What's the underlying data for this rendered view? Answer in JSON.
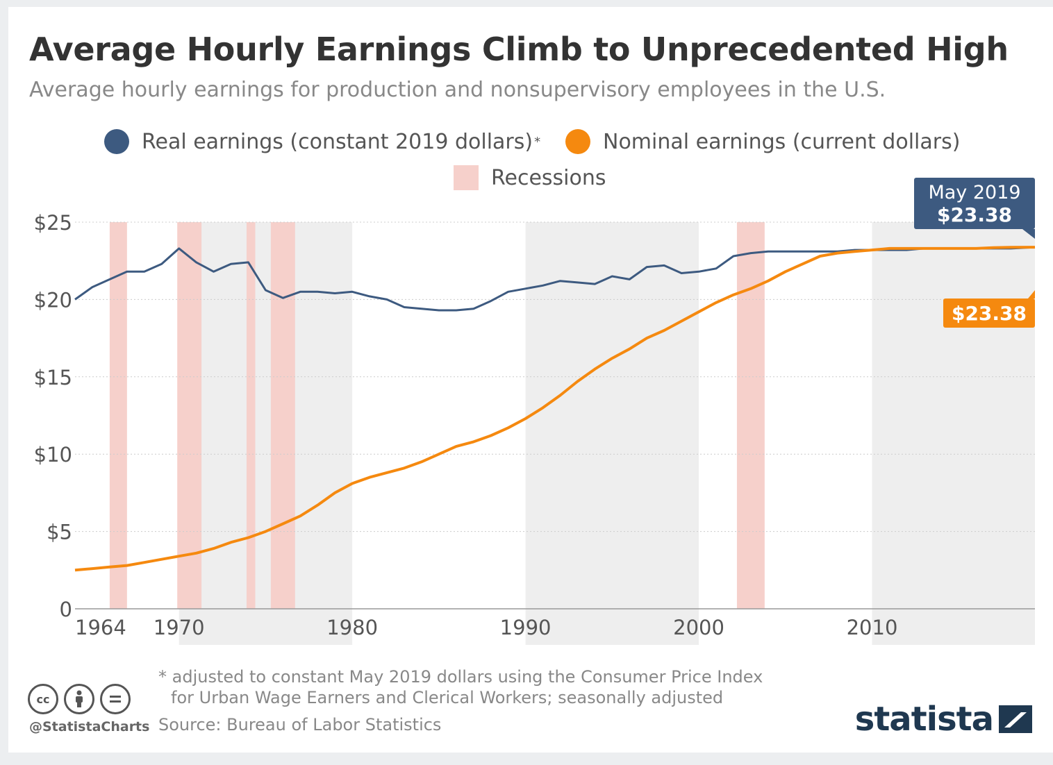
{
  "title": "Average Hourly Earnings Climb to Unprecedented High",
  "subtitle": "Average hourly earnings for production and nonsupervisory employees in the U.S.",
  "legend": {
    "real_label": "Real earnings (constant 2019 dollars)",
    "real_marker": "*",
    "nominal_label": "Nominal earnings (current dollars)",
    "recessions_label": "Recessions"
  },
  "callouts": {
    "real_date": "May 2019",
    "real_value": "$23.38",
    "nominal_value": "$23.38"
  },
  "footnote": {
    "line1": "* adjusted to constant May 2019 dollars using the Consumer Price Index",
    "line2": "for Urban Wage Earners and Clerical Workers; seasonally adjusted"
  },
  "source": "Source: Bureau of Labor Statistics",
  "handle": "@StatistaCharts",
  "brand": "statista",
  "license_icons": [
    "cc-icon",
    "by-icon",
    "nd-icon"
  ],
  "colors": {
    "real": "#3d5a80",
    "nominal": "#f5890f",
    "recession": "#f6d0cb",
    "decade_band": "#eeeeee",
    "brand": "#1f3850"
  },
  "chart_data": {
    "type": "line",
    "x_range": [
      1964,
      2019.4
    ],
    "ylim": [
      0,
      25
    ],
    "yticks": [
      0,
      5,
      10,
      15,
      20,
      25
    ],
    "ytick_labels": [
      "0",
      "$5",
      "$10",
      "$15",
      "$20",
      "$25"
    ],
    "xticks": [
      1964,
      1970,
      1980,
      1990,
      2000,
      2010
    ],
    "xtick_labels": [
      "1964",
      "1970",
      "1980",
      "1990",
      "2000",
      "2010"
    ],
    "decade_bands": [
      [
        1970,
        1980
      ],
      [
        1990,
        2000
      ],
      [
        2010,
        2019.4
      ]
    ],
    "recessions": [
      [
        1966.0,
        1967.0
      ],
      [
        1969.9,
        1971.3
      ],
      [
        1973.9,
        1974.4
      ],
      [
        1975.3,
        1976.7
      ],
      [
        2002.2,
        2003.8
      ]
    ],
    "grid": true,
    "series": [
      {
        "name": "Real earnings (constant 2019 dollars)",
        "x": [
          1964,
          1965,
          1966,
          1967,
          1968,
          1969,
          1970,
          1971,
          1972,
          1973,
          1974,
          1975,
          1976,
          1977,
          1978,
          1979,
          1980,
          1981,
          1982,
          1983,
          1984,
          1985,
          1986,
          1987,
          1988,
          1989,
          1990,
          1991,
          1992,
          1993,
          1994,
          1995,
          1996,
          1997,
          1998,
          1999,
          2000,
          2001,
          2002,
          2003,
          2004,
          2005,
          2006,
          2007,
          2008,
          2009,
          2010,
          2011,
          2012,
          2013,
          2014,
          2015,
          2016,
          2017,
          2018,
          2019.4
        ],
        "values": [
          20.0,
          20.8,
          21.3,
          21.8,
          21.8,
          22.3,
          23.3,
          22.4,
          21.8,
          22.3,
          22.4,
          20.6,
          20.1,
          20.5,
          20.5,
          20.4,
          20.5,
          20.2,
          20.0,
          19.5,
          19.4,
          19.3,
          19.3,
          19.4,
          19.9,
          20.5,
          20.7,
          20.9,
          21.2,
          21.1,
          21.0,
          21.5,
          21.3,
          22.1,
          22.2,
          21.7,
          21.8,
          22.0,
          22.8,
          23.0,
          23.1,
          23.1,
          23.1,
          23.1,
          23.1,
          23.2,
          23.2,
          23.2,
          23.2,
          23.3,
          23.3,
          23.3,
          23.3,
          23.3,
          23.3,
          23.38
        ]
      },
      {
        "name": "Nominal earnings (current dollars)",
        "x": [
          1964,
          1965,
          1966,
          1967,
          1968,
          1969,
          1970,
          1971,
          1972,
          1973,
          1974,
          1975,
          1976,
          1977,
          1978,
          1979,
          1980,
          1981,
          1982,
          1983,
          1984,
          1985,
          1986,
          1987,
          1988,
          1989,
          1990,
          1991,
          1992,
          1993,
          1994,
          1995,
          1996,
          1997,
          1998,
          1999,
          2000,
          2001,
          2002,
          2003,
          2004,
          2005,
          2006,
          2007,
          2008,
          2009,
          2010,
          2011,
          2012,
          2013,
          2014,
          2015,
          2016,
          2017,
          2018,
          2019.4
        ],
        "values": [
          2.5,
          2.6,
          2.7,
          2.8,
          3.0,
          3.2,
          3.4,
          3.6,
          3.9,
          4.3,
          4.6,
          5.0,
          5.5,
          6.0,
          6.7,
          7.5,
          8.1,
          8.5,
          8.8,
          9.1,
          9.5,
          10.0,
          10.5,
          10.8,
          11.2,
          11.7,
          12.3,
          13.0,
          13.8,
          14.7,
          15.5,
          16.2,
          16.8,
          17.5,
          18.0,
          18.6,
          19.2,
          19.8,
          20.3,
          20.7,
          21.2,
          21.8,
          22.3,
          22.8,
          23.0,
          23.1,
          23.2,
          23.3,
          23.3,
          23.3,
          23.3,
          23.3,
          23.3,
          23.35,
          23.37,
          23.38
        ]
      }
    ]
  }
}
